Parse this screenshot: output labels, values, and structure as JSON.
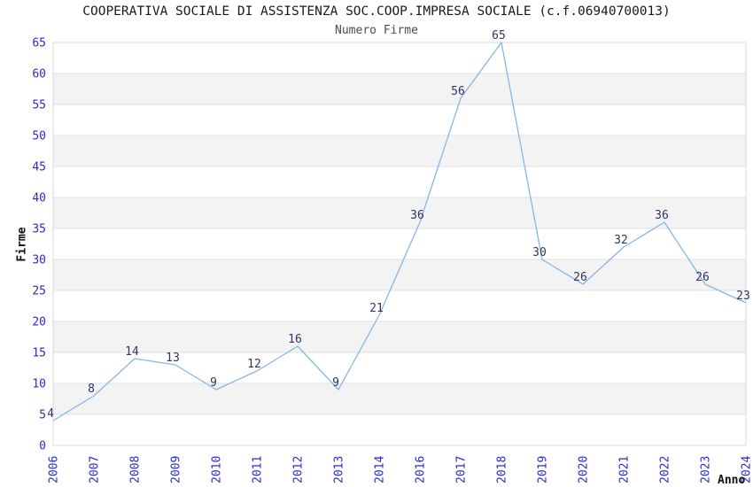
{
  "chart_data": {
    "type": "line",
    "title": "COOPERATIVA SOCIALE DI ASSISTENZA SOC.COOP.IMPRESA SOCIALE (c.f.06940700013)",
    "subtitle": "Numero Firme",
    "xlabel": "Anno",
    "ylabel": "Firme",
    "categories": [
      "2006",
      "2007",
      "2008",
      "2009",
      "2010",
      "2011",
      "2012",
      "2013",
      "2014",
      "2016",
      "2017",
      "2018",
      "2019",
      "2020",
      "2021",
      "2022",
      "2023",
      "2024"
    ],
    "values": [
      4,
      8,
      14,
      13,
      9,
      12,
      16,
      9,
      21,
      36,
      56,
      65,
      30,
      26,
      32,
      36,
      26,
      23
    ],
    "point_labels": [
      "4",
      "8",
      "14",
      "13",
      "9",
      "12",
      "16",
      "9",
      "21",
      "36",
      "56",
      "65",
      "30",
      "26",
      "32",
      "36",
      "26",
      "23"
    ],
    "y_ticks": [
      0,
      5,
      10,
      15,
      20,
      25,
      30,
      35,
      40,
      45,
      50,
      55,
      60,
      65
    ],
    "ylim": [
      0,
      65
    ],
    "grid": "horizontal-bands-alternating",
    "legend": "none",
    "x_tick_rotation": "vertical-bottom-to-top",
    "colors": {
      "line": "#84b6ea",
      "tick_label": "#2a2ad2",
      "point_label": "#333366",
      "band_fill": "#f3f3f3",
      "gridline": "#e2e2e2",
      "border": "#d8d8d8",
      "title": "#1a1a1a",
      "subtitle": "#4d4d4d",
      "axis_title": "#111111",
      "background": "#ffffff"
    }
  }
}
